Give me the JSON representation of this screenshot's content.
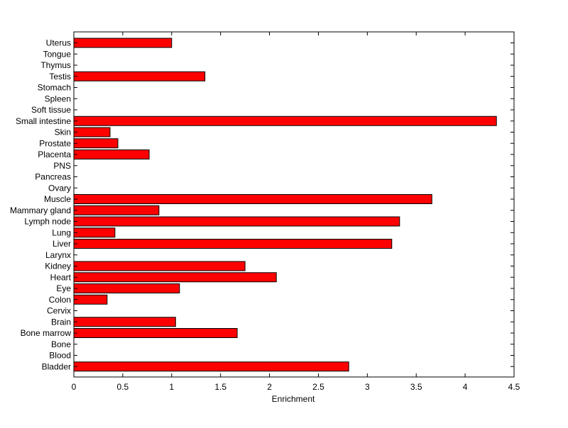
{
  "chart_data": {
    "type": "bar",
    "orientation": "horizontal",
    "title": "",
    "xlabel": "Enrichment",
    "ylabel": "",
    "xlim": [
      0,
      4.5
    ],
    "xticks": [
      "0",
      "0.5",
      "1",
      "1.5",
      "2",
      "2.5",
      "3",
      "3.5",
      "4",
      "4.5"
    ],
    "grid": false,
    "bar_color": "#ff0000",
    "bar_edge_color": "#000000",
    "categories": [
      "Uterus",
      "Tongue",
      "Thymus",
      "Testis",
      "Stomach",
      "Spleen",
      "Soft tissue",
      "Small intestine",
      "Skin",
      "Prostate",
      "Placenta",
      "PNS",
      "Pancreas",
      "Ovary",
      "Muscle",
      "Mammary gland",
      "Lymph node",
      "Lung",
      "Liver",
      "Larynx",
      "Kidney",
      "Heart",
      "Eye",
      "Colon",
      "Cervix",
      "Brain",
      "Bone marrow",
      "Bone",
      "Blood",
      "Bladder"
    ],
    "values": [
      1.0,
      0,
      0,
      1.34,
      0,
      0,
      0,
      4.32,
      0.37,
      0.45,
      0.77,
      0,
      0,
      0,
      3.66,
      0.87,
      3.33,
      0.42,
      3.25,
      0,
      1.75,
      2.07,
      1.08,
      0.34,
      0,
      1.04,
      1.67,
      0,
      0,
      2.81
    ]
  }
}
